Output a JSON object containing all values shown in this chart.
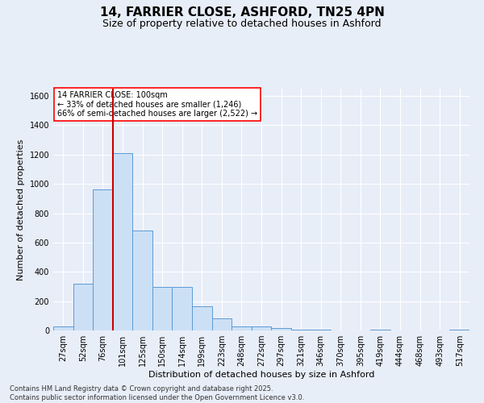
{
  "title": "14, FARRIER CLOSE, ASHFORD, TN25 4PN",
  "subtitle": "Size of property relative to detached houses in Ashford",
  "xlabel": "Distribution of detached houses by size in Ashford",
  "ylabel": "Number of detached properties",
  "footnote1": "Contains HM Land Registry data © Crown copyright and database right 2025.",
  "footnote2": "Contains public sector information licensed under the Open Government Licence v3.0.",
  "annotation_title": "14 FARRIER CLOSE: 100sqm",
  "annotation_line1": "← 33% of detached houses are smaller (1,246)",
  "annotation_line2": "66% of semi-detached houses are larger (2,522) →",
  "bar_color": "#cce0f5",
  "bar_edge_color": "#5b9bd5",
  "vline_color": "#cc0000",
  "vline_x_index": 3,
  "categories": [
    "27sqm",
    "52sqm",
    "76sqm",
    "101sqm",
    "125sqm",
    "150sqm",
    "174sqm",
    "199sqm",
    "223sqm",
    "248sqm",
    "272sqm",
    "297sqm",
    "321sqm",
    "346sqm",
    "370sqm",
    "395sqm",
    "419sqm",
    "444sqm",
    "468sqm",
    "493sqm",
    "517sqm"
  ],
  "values": [
    30,
    320,
    960,
    1210,
    680,
    295,
    295,
    165,
    80,
    30,
    30,
    18,
    5,
    5,
    0,
    0,
    3,
    0,
    0,
    0,
    5
  ],
  "ylim": [
    0,
    1650
  ],
  "yticks": [
    0,
    200,
    400,
    600,
    800,
    1000,
    1200,
    1400,
    1600
  ],
  "background_color": "#e8eef8",
  "plot_background": "#e8eef8",
  "grid_color": "#ffffff",
  "title_fontsize": 11,
  "subtitle_fontsize": 9,
  "tick_fontsize": 7,
  "label_fontsize": 8,
  "footnote_fontsize": 6
}
